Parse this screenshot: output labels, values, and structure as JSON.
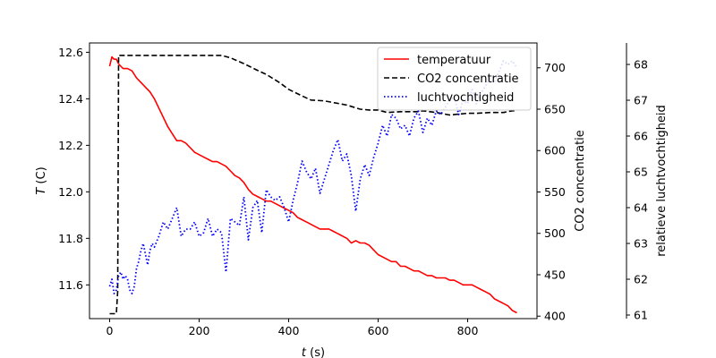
{
  "chart_data": {
    "type": "line",
    "xlabel_var": "t",
    "xlabel_unit": "(s)",
    "ylabel_left_var": "T",
    "ylabel_left_unit": "(C)",
    "ylabel_right1": "CO2 concentratie",
    "ylabel_right2": "relatieve luchtvochtigheid",
    "xlim": [
      -45,
      955
    ],
    "ylim_left": [
      11.455,
      12.64
    ],
    "ylim_right1": [
      397,
      730
    ],
    "ylim_right2": [
      60.9,
      68.6
    ],
    "xticks": [
      0,
      200,
      400,
      600,
      800
    ],
    "yticks_left": [
      11.6,
      11.8,
      12.0,
      12.2,
      12.4,
      12.6
    ],
    "yticks_left_labels": [
      "11.6",
      "11.8",
      "12.0",
      "12.2",
      "12.4",
      "12.6"
    ],
    "yticks_right1": [
      400,
      450,
      500,
      550,
      600,
      650,
      700
    ],
    "yticks_right2": [
      61,
      62,
      63,
      64,
      65,
      66,
      67,
      68
    ],
    "legend_position": "top-right",
    "legend": [
      "temperatuur",
      "CO2 concentratie",
      "luchtvochtigheid"
    ],
    "series": [
      {
        "name": "temperatuur",
        "axis": "left",
        "color": "#ff0000",
        "style": "solid",
        "x": [
          0,
          5,
          10,
          15,
          20,
          25,
          30,
          40,
          50,
          60,
          70,
          80,
          90,
          100,
          110,
          120,
          130,
          140,
          150,
          160,
          170,
          180,
          190,
          200,
          210,
          220,
          230,
          240,
          250,
          260,
          270,
          280,
          290,
          300,
          310,
          320,
          330,
          340,
          350,
          360,
          370,
          380,
          390,
          400,
          410,
          420,
          430,
          440,
          450,
          460,
          470,
          480,
          490,
          500,
          510,
          520,
          530,
          540,
          550,
          560,
          570,
          580,
          590,
          600,
          610,
          620,
          630,
          640,
          650,
          660,
          670,
          680,
          690,
          700,
          710,
          720,
          730,
          740,
          750,
          760,
          770,
          780,
          790,
          800,
          810,
          820,
          830,
          840,
          850,
          860,
          870,
          880,
          890,
          900,
          910
        ],
        "y": [
          12.54,
          12.58,
          12.57,
          12.57,
          12.55,
          12.54,
          12.53,
          12.53,
          12.52,
          12.49,
          12.47,
          12.45,
          12.43,
          12.4,
          12.36,
          12.32,
          12.28,
          12.25,
          12.22,
          12.22,
          12.21,
          12.19,
          12.17,
          12.16,
          12.15,
          12.14,
          12.13,
          12.13,
          12.12,
          12.11,
          12.09,
          12.07,
          12.06,
          12.04,
          12.01,
          11.99,
          11.98,
          11.97,
          11.96,
          11.96,
          11.95,
          11.94,
          11.93,
          11.92,
          11.91,
          11.89,
          11.88,
          11.87,
          11.86,
          11.85,
          11.84,
          11.84,
          11.84,
          11.83,
          11.82,
          11.81,
          11.8,
          11.78,
          11.79,
          11.78,
          11.78,
          11.77,
          11.75,
          11.73,
          11.72,
          11.71,
          11.7,
          11.7,
          11.68,
          11.68,
          11.67,
          11.66,
          11.66,
          11.65,
          11.64,
          11.64,
          11.63,
          11.63,
          11.63,
          11.62,
          11.62,
          11.61,
          11.6,
          11.6,
          11.6,
          11.59,
          11.58,
          11.57,
          11.56,
          11.54,
          11.53,
          11.52,
          11.51,
          11.49,
          11.48
        ]
      },
      {
        "name": "CO2 concentratie",
        "axis": "right1",
        "color": "#000000",
        "style": "dashed",
        "x": [
          0,
          10,
          15,
          18,
          20,
          25,
          250,
          270,
          300,
          330,
          350,
          380,
          400,
          430,
          450,
          480,
          500,
          530,
          560,
          580,
          600,
          620,
          650,
          690,
          700,
          730,
          760,
          780,
          800,
          820,
          850,
          880,
          900,
          910
        ],
        "y": [
          403,
          403,
          403,
          430,
          715,
          715,
          715,
          712,
          705,
          697,
          692,
          682,
          674,
          666,
          661,
          660,
          658,
          655,
          650,
          649,
          649,
          646,
          647,
          647,
          648,
          646,
          643,
          644,
          645,
          645,
          646,
          646,
          648,
          648
        ]
      },
      {
        "name": "luchtvochtigheid",
        "axis": "right2",
        "color": "#0000ff",
        "style": "dotted",
        "x": [
          0,
          5,
          10,
          15,
          20,
          25,
          30,
          35,
          40,
          45,
          50,
          55,
          60,
          65,
          70,
          75,
          80,
          85,
          90,
          95,
          100,
          110,
          120,
          130,
          140,
          150,
          160,
          170,
          180,
          190,
          200,
          210,
          220,
          230,
          240,
          250,
          260,
          270,
          280,
          290,
          300,
          310,
          320,
          330,
          340,
          350,
          360,
          370,
          380,
          390,
          400,
          410,
          420,
          430,
          440,
          450,
          460,
          470,
          480,
          490,
          500,
          510,
          520,
          530,
          540,
          550,
          560,
          570,
          580,
          590,
          600,
          610,
          620,
          630,
          640,
          650,
          660,
          670,
          680,
          690,
          700,
          710,
          720,
          730,
          740,
          750,
          760,
          770,
          780,
          790,
          800,
          810,
          820,
          830,
          840,
          850,
          860,
          870,
          880,
          890,
          900,
          910
        ],
        "y": [
          61.8,
          62.0,
          61.6,
          61.7,
          62.1,
          62.2,
          62.0,
          62.1,
          62.0,
          61.7,
          61.6,
          61.8,
          62.3,
          62.5,
          62.8,
          63.0,
          62.7,
          62.4,
          62.8,
          63.0,
          62.9,
          63.2,
          63.6,
          63.4,
          63.7,
          64.0,
          63.2,
          63.4,
          63.4,
          63.6,
          63.2,
          63.3,
          63.7,
          63.2,
          63.4,
          63.3,
          62.2,
          63.7,
          63.6,
          63.5,
          64.3,
          63.1,
          64.0,
          64.2,
          63.3,
          64.5,
          64.3,
          64.2,
          64.3,
          64.0,
          63.6,
          64.2,
          64.7,
          65.3,
          65.0,
          64.8,
          65.1,
          64.4,
          64.8,
          65.2,
          65.6,
          65.9,
          65.3,
          65.5,
          64.9,
          63.9,
          64.8,
          65.2,
          64.9,
          65.4,
          65.8,
          66.3,
          66.0,
          66.6,
          66.5,
          66.2,
          66.3,
          66.0,
          66.5,
          66.7,
          66.1,
          66.5,
          66.3,
          66.7,
          66.6,
          66.8,
          67.0,
          67.1,
          66.6,
          67.0,
          66.9,
          67.3,
          66.9,
          67.2,
          67.4,
          67.6,
          67.5,
          67.8,
          68.1,
          68.0,
          68.1,
          67.9
        ]
      }
    ]
  }
}
